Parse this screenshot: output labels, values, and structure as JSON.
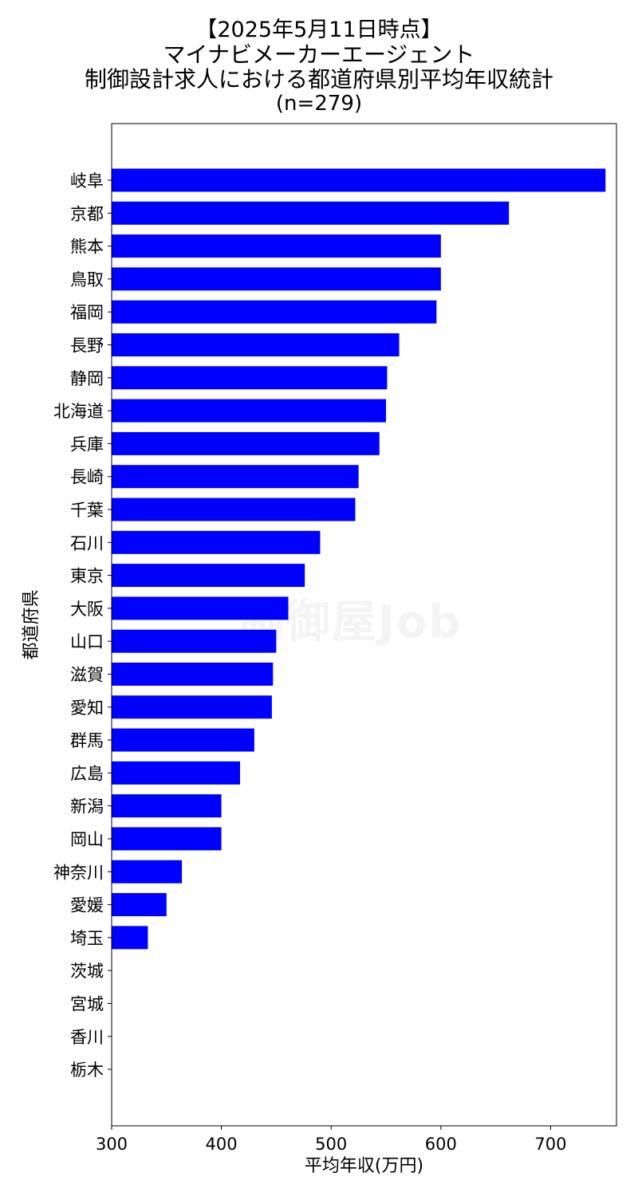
{
  "chart_data": {
    "type": "bar",
    "orientation": "horizontal",
    "title_lines": [
      "【2025年5月11日時点】",
      "マイナビメーカーエージェント",
      "制御設計求人における都道府県別平均年収統計",
      "(n=279)"
    ],
    "xlabel": "平均年収(万円)",
    "ylabel": "都道府県",
    "xlim": [
      300,
      760
    ],
    "xticks": [
      300,
      400,
      500,
      600,
      700
    ],
    "categories": [
      "岐阜",
      "京都",
      "熊本",
      "鳥取",
      "福岡",
      "長野",
      "静岡",
      "北海道",
      "兵庫",
      "長崎",
      "千葉",
      "石川",
      "東京",
      "大阪",
      "山口",
      "滋賀",
      "愛知",
      "群馬",
      "広島",
      "新潟",
      "岡山",
      "神奈川",
      "愛媛",
      "埼玉",
      "茨城",
      "宮城",
      "香川",
      "栃木"
    ],
    "values": [
      750,
      662,
      600,
      600,
      596,
      562,
      551,
      550,
      544,
      525,
      522,
      490,
      476,
      461,
      450,
      447,
      446,
      430,
      417,
      400,
      400,
      364,
      350,
      333,
      300,
      300,
      300,
      300
    ],
    "bar_color": "#0000ff",
    "grid": false,
    "watermark": "制御屋Job"
  }
}
